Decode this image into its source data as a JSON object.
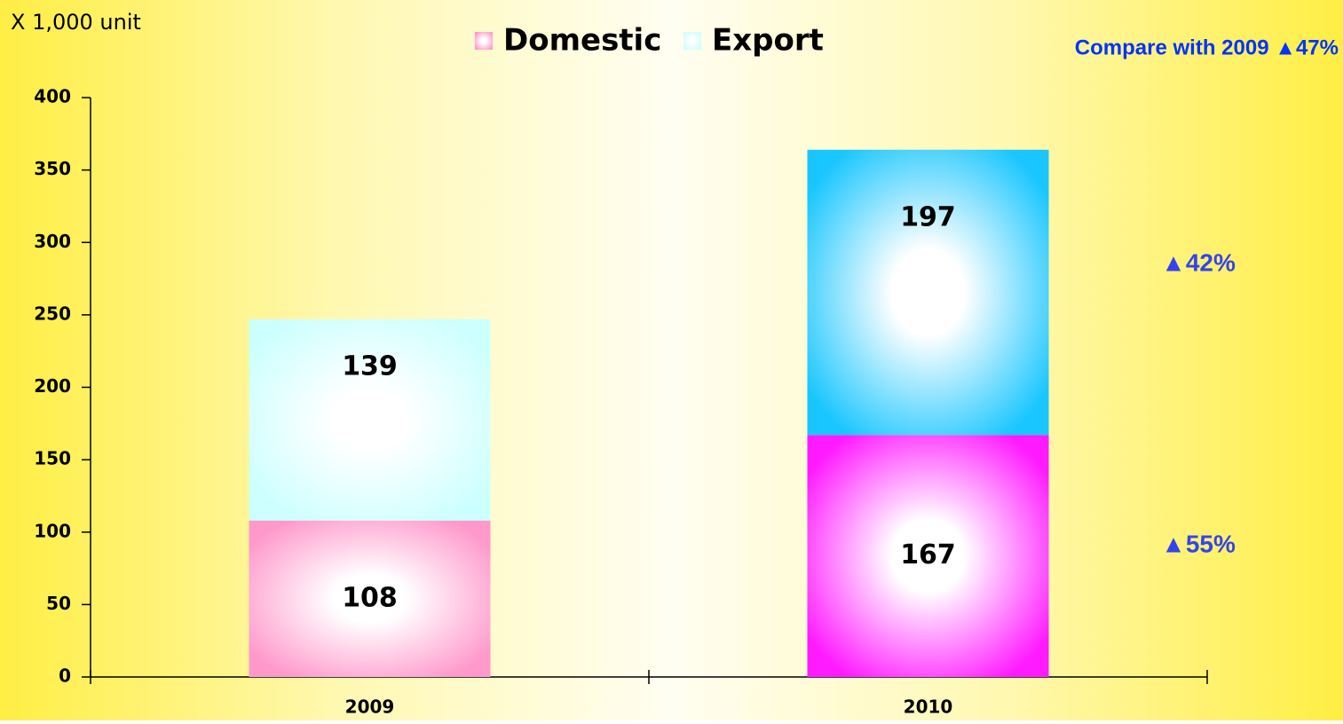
{
  "chart_data": {
    "type": "stacked_bar",
    "unit_label": "X 1,000 unit",
    "categories": [
      "2009",
      "2010"
    ],
    "series": [
      {
        "name": "Domestic",
        "color": "#ff99cc",
        "colors": [
          "#ff99cc",
          "#ff1aff"
        ],
        "values": [
          108,
          167
        ]
      },
      {
        "name": "Export",
        "color": "#ccffff",
        "colors": [
          "#ccffff",
          "#1ac6ff"
        ],
        "values": [
          139,
          197
        ]
      }
    ],
    "ylim": [
      0,
      400
    ],
    "yticks": [
      0,
      50,
      100,
      150,
      200,
      250,
      300,
      350,
      400
    ],
    "annotations": [
      "Compare with  2009  ▲47%",
      "▲42%",
      "▲55%"
    ]
  }
}
